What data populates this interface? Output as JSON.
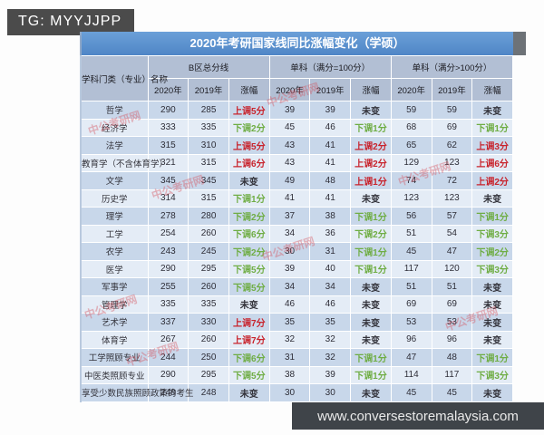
{
  "badges": {
    "tg_handle": "TG: MYYJJPP",
    "website": "www.conversestoremalaysia.com"
  },
  "watermark_text": "中公考研网",
  "theme": {
    "title_bar_blue": "#5591cf",
    "header_gray_blue": "#b2bfd4",
    "row_odd": "#c8d7ea",
    "row_even": "#e4ecf6",
    "increase_red": "#c8232c",
    "decrease_green": "#6fad44"
  },
  "table": {
    "title": "2020年考研国家线同比涨幅变化（学硕）",
    "first_col_header": "学科门类（专业）名称",
    "groups": [
      {
        "label": "B区总分线"
      },
      {
        "label": "单科（满分=100分）"
      },
      {
        "label": "单科（满分>100分）"
      }
    ],
    "subcols": [
      "2020年",
      "2019年",
      "涨幅"
    ],
    "rows": [
      {
        "name": "哲学",
        "cells": [
          [
            "290"
          ],
          [
            "285"
          ],
          [
            "上调5分",
            "up"
          ],
          [
            "39"
          ],
          [
            "39"
          ],
          [
            "未变",
            "same"
          ],
          [
            "59"
          ],
          [
            "59"
          ],
          [
            "未变",
            "same"
          ]
        ]
      },
      {
        "name": "经济学",
        "cells": [
          [
            "333"
          ],
          [
            "335"
          ],
          [
            "下调2分",
            "down"
          ],
          [
            "45"
          ],
          [
            "46"
          ],
          [
            "下调1分",
            "down"
          ],
          [
            "68"
          ],
          [
            "69"
          ],
          [
            "下调1分",
            "down"
          ]
        ]
      },
      {
        "name": "法学",
        "cells": [
          [
            "315"
          ],
          [
            "310"
          ],
          [
            "上调5分",
            "up"
          ],
          [
            "43"
          ],
          [
            "41"
          ],
          [
            "上调2分",
            "up"
          ],
          [
            "65"
          ],
          [
            "62"
          ],
          [
            "上调3分",
            "up"
          ]
        ]
      },
      {
        "name": "教育学（不含体育学）",
        "cells": [
          [
            "321"
          ],
          [
            "315"
          ],
          [
            "上调6分",
            "up"
          ],
          [
            "43"
          ],
          [
            "41"
          ],
          [
            "上调2分",
            "up"
          ],
          [
            "129"
          ],
          [
            "123"
          ],
          [
            "上调6分",
            "up"
          ]
        ]
      },
      {
        "name": "文学",
        "cells": [
          [
            "345"
          ],
          [
            "345"
          ],
          [
            "未变",
            "same"
          ],
          [
            "49"
          ],
          [
            "48"
          ],
          [
            "上调1分",
            "up"
          ],
          [
            "74"
          ],
          [
            "72"
          ],
          [
            "上调2分",
            "up"
          ]
        ]
      },
      {
        "name": "历史学",
        "cells": [
          [
            "314"
          ],
          [
            "315"
          ],
          [
            "下调1分",
            "down"
          ],
          [
            "41"
          ],
          [
            "41"
          ],
          [
            "未变",
            "same"
          ],
          [
            "123"
          ],
          [
            "123"
          ],
          [
            "未变",
            "same"
          ]
        ]
      },
      {
        "name": "理学",
        "cells": [
          [
            "278"
          ],
          [
            "280"
          ],
          [
            "下调2分",
            "down"
          ],
          [
            "37"
          ],
          [
            "38"
          ],
          [
            "下调1分",
            "down"
          ],
          [
            "56"
          ],
          [
            "57"
          ],
          [
            "下调1分",
            "down"
          ]
        ]
      },
      {
        "name": "工学",
        "cells": [
          [
            "254"
          ],
          [
            "260"
          ],
          [
            "下调6分",
            "down"
          ],
          [
            "34"
          ],
          [
            "36"
          ],
          [
            "下调2分",
            "down"
          ],
          [
            "51"
          ],
          [
            "54"
          ],
          [
            "下调3分",
            "down"
          ]
        ]
      },
      {
        "name": "农学",
        "cells": [
          [
            "243"
          ],
          [
            "245"
          ],
          [
            "下调2分",
            "down"
          ],
          [
            "30"
          ],
          [
            "31"
          ],
          [
            "下调1分",
            "down"
          ],
          [
            "45"
          ],
          [
            "47"
          ],
          [
            "下调2分",
            "down"
          ]
        ]
      },
      {
        "name": "医学",
        "cells": [
          [
            "290"
          ],
          [
            "295"
          ],
          [
            "下调5分",
            "down"
          ],
          [
            "39"
          ],
          [
            "40"
          ],
          [
            "下调1分",
            "down"
          ],
          [
            "117"
          ],
          [
            "120"
          ],
          [
            "下调3分",
            "down"
          ]
        ]
      },
      {
        "name": "军事学",
        "cells": [
          [
            "255"
          ],
          [
            "260"
          ],
          [
            "下调5分",
            "down"
          ],
          [
            "34"
          ],
          [
            "34"
          ],
          [
            "未变",
            "same"
          ],
          [
            "51"
          ],
          [
            "51"
          ],
          [
            "未变",
            "same"
          ]
        ]
      },
      {
        "name": "管理学",
        "cells": [
          [
            "335"
          ],
          [
            "335"
          ],
          [
            "未变",
            "same"
          ],
          [
            "46"
          ],
          [
            "46"
          ],
          [
            "未变",
            "same"
          ],
          [
            "69"
          ],
          [
            "69"
          ],
          [
            "未变",
            "same"
          ]
        ]
      },
      {
        "name": "艺术学",
        "cells": [
          [
            "337"
          ],
          [
            "330"
          ],
          [
            "上调7分",
            "up"
          ],
          [
            "35"
          ],
          [
            "35"
          ],
          [
            "未变",
            "same"
          ],
          [
            "53"
          ],
          [
            "53"
          ],
          [
            "未变",
            "same"
          ]
        ]
      },
      {
        "name": "体育学",
        "cells": [
          [
            "267"
          ],
          [
            "260"
          ],
          [
            "上调7分",
            "up"
          ],
          [
            "32"
          ],
          [
            "32"
          ],
          [
            "未变",
            "same"
          ],
          [
            "96"
          ],
          [
            "96"
          ],
          [
            "未变",
            "same"
          ]
        ]
      },
      {
        "name": "工学照顾专业",
        "cells": [
          [
            "244"
          ],
          [
            "250"
          ],
          [
            "下调6分",
            "down"
          ],
          [
            "31"
          ],
          [
            "32"
          ],
          [
            "下调1分",
            "down"
          ],
          [
            "47"
          ],
          [
            "48"
          ],
          [
            "下调1分",
            "down"
          ]
        ]
      },
      {
        "name": "中医类照顾专业",
        "cells": [
          [
            "290"
          ],
          [
            "295"
          ],
          [
            "下调5分",
            "down"
          ],
          [
            "38"
          ],
          [
            "39"
          ],
          [
            "下调1分",
            "down"
          ],
          [
            "114"
          ],
          [
            "117"
          ],
          [
            "下调3分",
            "down"
          ]
        ]
      },
      {
        "name": "享受少数民族照顾政策的考生",
        "cells": [
          [
            "248"
          ],
          [
            "248"
          ],
          [
            "未变",
            "same"
          ],
          [
            "30"
          ],
          [
            "30"
          ],
          [
            "未变",
            "same"
          ],
          [
            "45"
          ],
          [
            "45"
          ],
          [
            "未变",
            "same"
          ]
        ]
      }
    ]
  }
}
